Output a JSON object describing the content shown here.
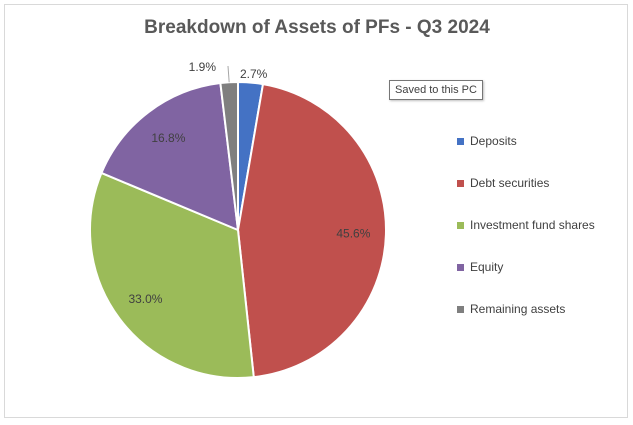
{
  "chart_data": {
    "type": "pie",
    "title": "Breakdown of Assets of PFs - Q3 2024",
    "categories": [
      "Deposits",
      "Debt securities",
      "Investment fund shares",
      "Equity",
      "Remaining assets"
    ],
    "values": [
      2.7,
      45.6,
      33.0,
      16.8,
      1.9
    ],
    "labels": [
      "2.7%",
      "45.6%",
      "33.0%",
      "16.8%",
      "1.9%"
    ],
    "colors": [
      "#4472c4",
      "#c0504d",
      "#9bbb59",
      "#8064a2",
      "#7f7f7f"
    ],
    "legend_position": "right"
  },
  "tooltip": {
    "text": "Saved to this PC"
  }
}
